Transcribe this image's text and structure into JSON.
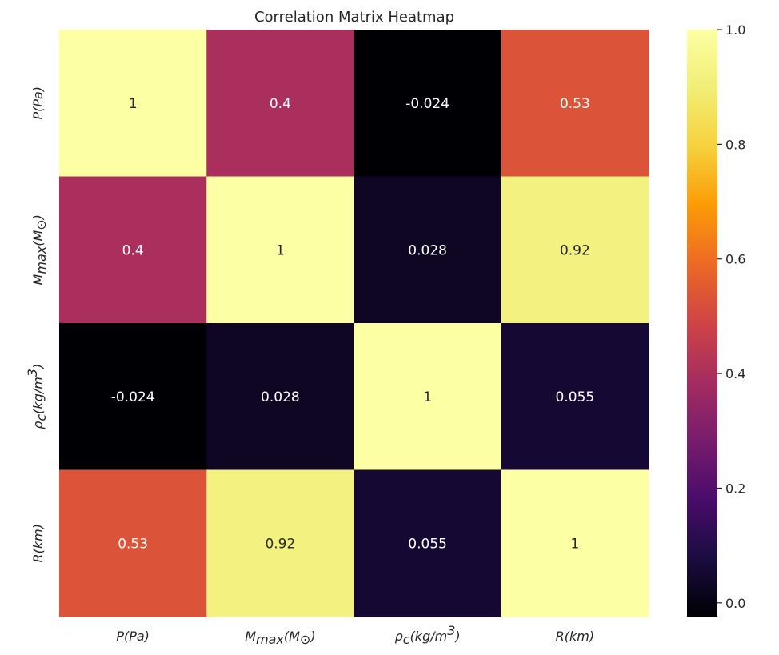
{
  "chart_data": {
    "type": "heatmap",
    "title": "Correlation Matrix Heatmap",
    "colormap": "inferno",
    "value_range": [
      -0.024,
      1.0
    ],
    "labels": {
      "p": {
        "base": "P(Pa)"
      },
      "mmax": {
        "main": "M",
        "sub": "max",
        "rest1": "(M",
        "sub2": "⊙",
        "rest2": ")"
      },
      "rho": {
        "main": "ρ",
        "sub": "c",
        "rest1": "(kg/m",
        "sup": "3",
        "rest2": ")"
      },
      "r": {
        "base": "R(km)"
      }
    },
    "variables": [
      "p",
      "mmax",
      "rho",
      "r"
    ],
    "matrix": [
      [
        1,
        0.4,
        -0.024,
        0.53
      ],
      [
        0.4,
        1,
        0.028,
        0.92
      ],
      [
        -0.024,
        0.028,
        1,
        0.055
      ],
      [
        0.53,
        0.92,
        0.055,
        1
      ]
    ],
    "annotations": [
      [
        "1",
        "0.4",
        "-0.024",
        "0.53"
      ],
      [
        "0.4",
        "1",
        "0.028",
        "0.92"
      ],
      [
        "-0.024",
        "0.028",
        "1",
        "0.055"
      ],
      [
        "0.53",
        "0.92",
        "0.055",
        "1"
      ]
    ],
    "colorbar": {
      "ticks": [
        0.0,
        0.2,
        0.4,
        0.6,
        0.8,
        1.0
      ],
      "tick_labels": [
        "0.0",
        "0.2",
        "0.4",
        "0.6",
        "0.8",
        "1.0"
      ]
    }
  }
}
